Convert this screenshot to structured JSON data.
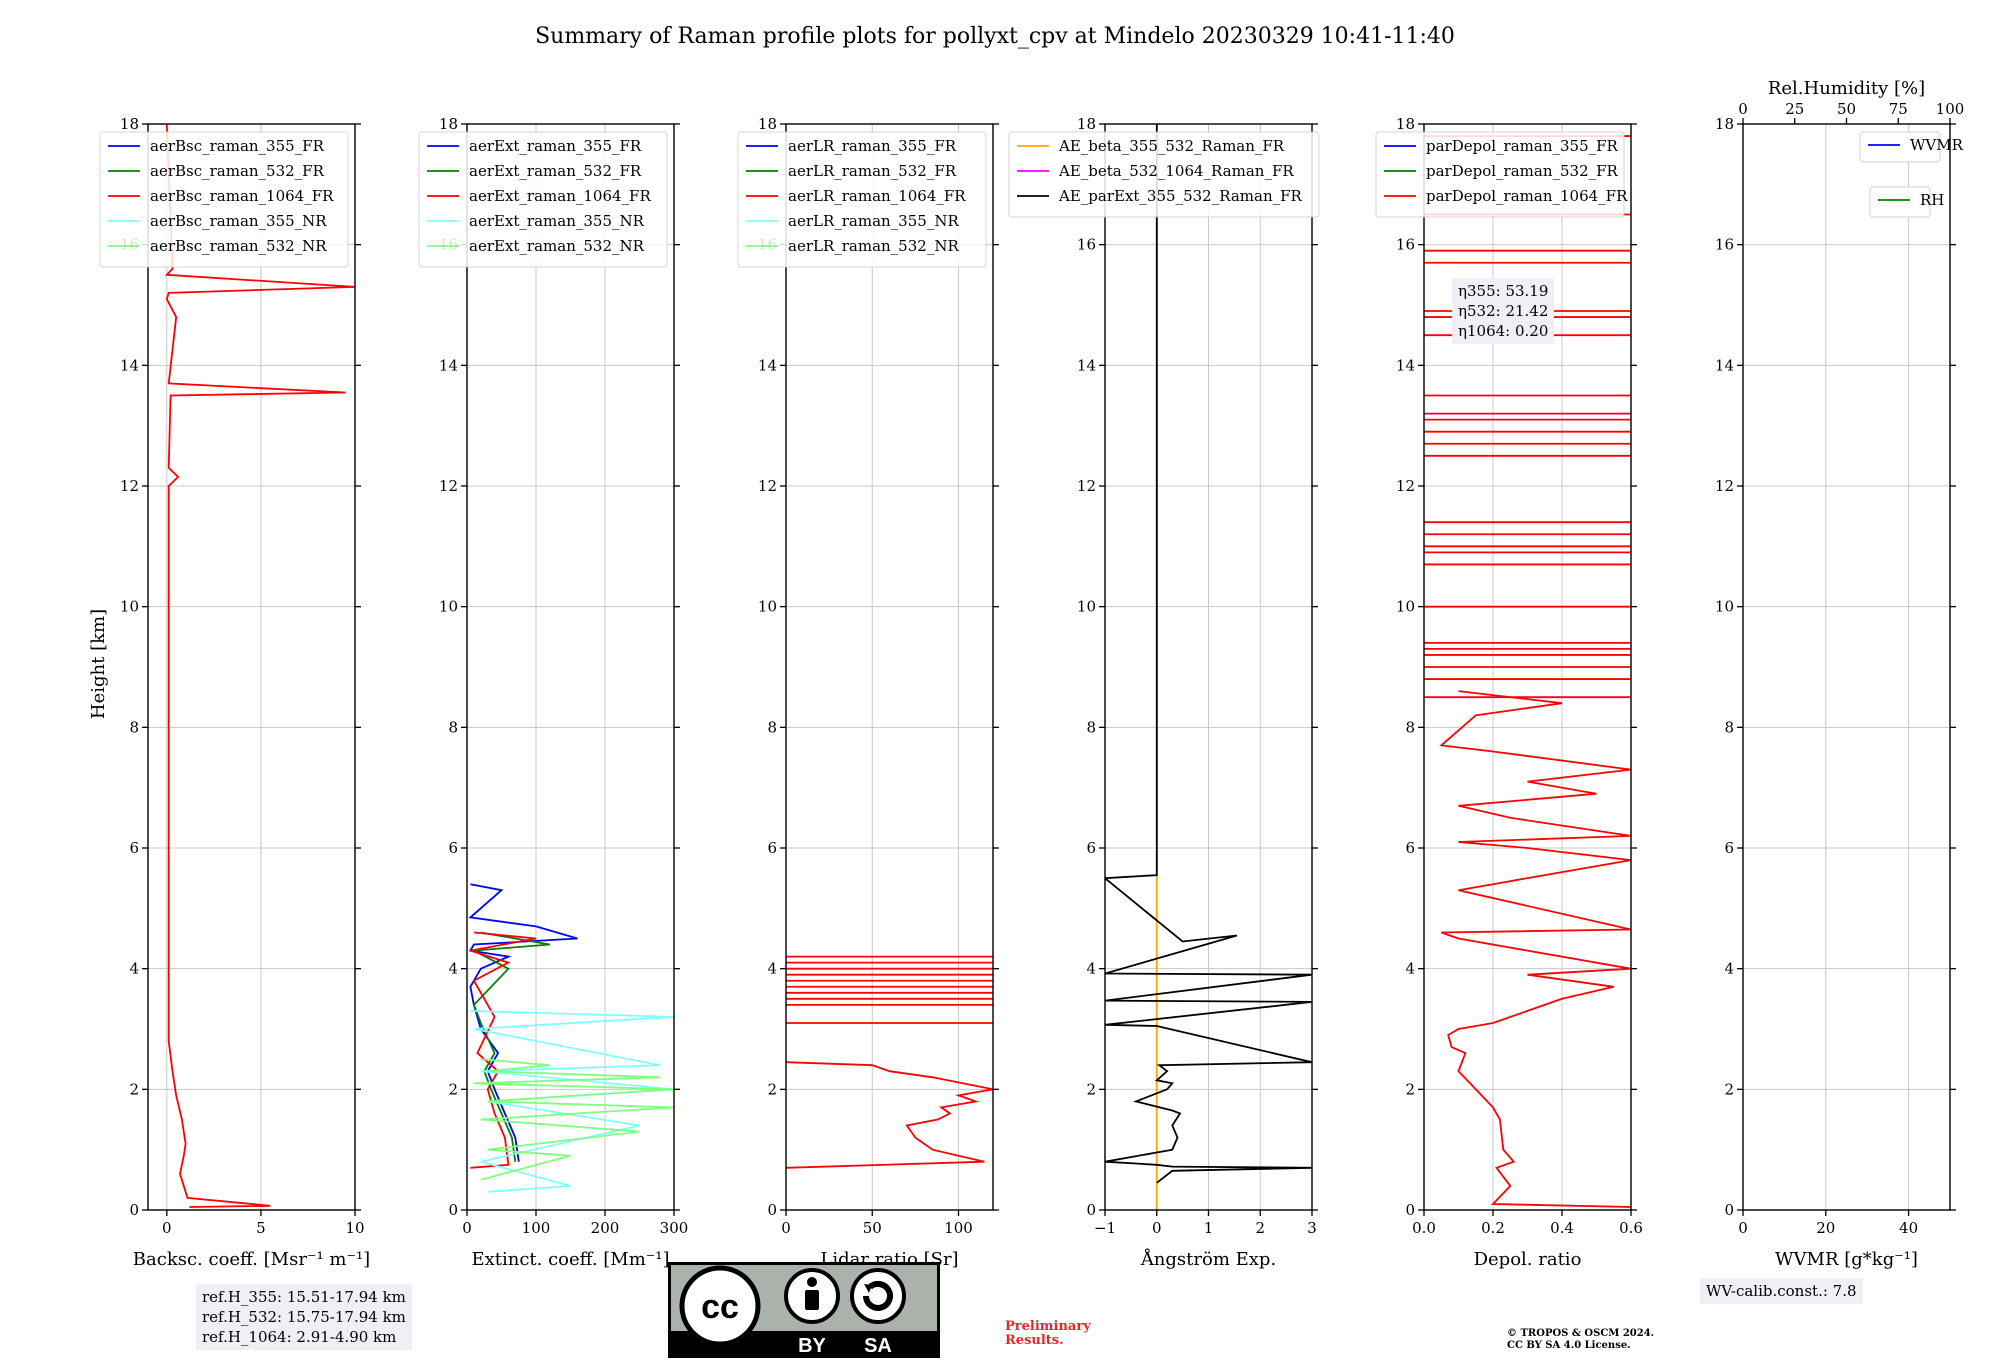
{
  "title": "Summary of Raman profile plots for pollyxt_cpv at Mindelo 20230329 10:41-11:40",
  "ref_heights": [
    "ref.H_355: 15.51-17.94 km",
    "ref.H_532: 15.75-17.94 km",
    "ref.H_1064: 2.91-4.90 km"
  ],
  "wv_calib": "WV-calib.const.: 7.8",
  "eta": [
    "η355: 53.19",
    "η532: 21.42",
    "η1064: 0.20"
  ],
  "preliminary": [
    "Preliminary",
    "Results."
  ],
  "copyright": [
    "© TROPOS & OSCM 2024.",
    "CC BY SA 4.0 License."
  ],
  "license_badge": {
    "left": "BY",
    "right": "SA",
    "icon": "cc-license-icon"
  },
  "colors": {
    "blue": "#0000ff",
    "green": "#008000",
    "red": "#ff0000",
    "cyan": "#80ffff",
    "lightgreen": "#80ff80",
    "orange": "#ffa500",
    "magenta": "#ff00ff",
    "black": "#000000"
  },
  "chart_data": [
    {
      "type": "line",
      "xlabel": "Backsc. coeff. [Msr⁻¹ m⁻¹]",
      "ylabel": "Height [km]",
      "xlim": [
        -1,
        10
      ],
      "ylim": [
        0,
        18
      ],
      "xticks": [
        "0",
        "5",
        "10"
      ],
      "xtick_values": [
        0,
        5,
        10
      ],
      "yticks": [
        "0",
        "2",
        "4",
        "6",
        "8",
        "10",
        "12",
        "14",
        "16",
        "18"
      ],
      "legend": [
        "aerBsc_raman_355_FR",
        "aerBsc_raman_532_FR",
        "aerBsc_raman_1064_FR",
        "aerBsc_raman_355_NR",
        "aerBsc_raman_532_NR"
      ],
      "legend_position": "top-left",
      "series": [
        {
          "name": "aerBsc_raman_1064_FR",
          "color": "red",
          "x": [
            1.2,
            5.5,
            1.1,
            0.7,
            0.9,
            1.0,
            0.8,
            0.5,
            0.3,
            0.1,
            0.1,
            0.1,
            0.6,
            0.1,
            0.2,
            9.5,
            0.1,
            0.5,
            0.0,
            0.1,
            10.0,
            0.0,
            0.3,
            0.0
          ],
          "y": [
            0.05,
            0.07,
            0.2,
            0.6,
            0.9,
            1.1,
            1.5,
            1.9,
            2.3,
            2.8,
            6.0,
            12.0,
            12.15,
            12.3,
            13.5,
            13.55,
            13.7,
            14.8,
            15.1,
            15.2,
            15.3,
            15.5,
            15.6,
            18.0
          ]
        }
      ]
    },
    {
      "type": "line",
      "xlabel": "Extinct. coeff. [Mm⁻¹]",
      "xlim": [
        0,
        300
      ],
      "ylim": [
        0,
        18
      ],
      "xticks": [
        "0",
        "100",
        "200",
        "300"
      ],
      "xtick_values": [
        0,
        100,
        200,
        300
      ],
      "yticks": [
        "0",
        "2",
        "4",
        "6",
        "8",
        "10",
        "12",
        "14",
        "16",
        "18"
      ],
      "legend": [
        "aerExt_raman_355_FR",
        "aerExt_raman_532_FR",
        "aerExt_raman_1064_FR",
        "aerExt_raman_355_NR",
        "aerExt_raman_532_NR"
      ],
      "legend_position": "top-left",
      "series": [
        {
          "name": "aerExt_raman_355_FR",
          "color": "blue",
          "x": [
            75,
            70,
            55,
            40,
            30,
            45,
            20,
            10,
            5,
            20,
            60,
            5,
            10,
            160,
            100,
            5,
            50,
            5
          ],
          "y": [
            0.8,
            1.2,
            1.6,
            2.0,
            2.3,
            2.6,
            3.0,
            3.4,
            3.7,
            4.0,
            4.2,
            4.3,
            4.4,
            4.5,
            4.7,
            4.85,
            5.3,
            5.4
          ]
        },
        {
          "name": "aerExt_raman_532_FR",
          "color": "green",
          "x": [
            70,
            65,
            50,
            35,
            25,
            40,
            20,
            10,
            60,
            10,
            120,
            20
          ],
          "y": [
            0.8,
            1.2,
            1.6,
            2.0,
            2.3,
            2.6,
            3.1,
            3.4,
            4.0,
            4.3,
            4.4,
            4.6
          ]
        },
        {
          "name": "aerExt_raman_1064_FR",
          "color": "red",
          "x": [
            5,
            60,
            55,
            40,
            30,
            45,
            15,
            40,
            10,
            60,
            5,
            100,
            10
          ],
          "y": [
            0.7,
            0.75,
            1.2,
            1.6,
            2.0,
            2.3,
            2.6,
            3.2,
            3.8,
            4.1,
            4.3,
            4.5,
            4.6
          ]
        },
        {
          "name": "aerExt_raman_355_NR",
          "color": "cyan",
          "x": [
            30,
            150,
            20,
            250,
            30,
            300,
            20,
            280,
            10,
            300,
            5
          ],
          "y": [
            0.3,
            0.4,
            0.8,
            1.4,
            1.8,
            2.0,
            2.3,
            2.4,
            3.0,
            3.2,
            3.3
          ]
        },
        {
          "name": "aerExt_raman_532_NR",
          "color": "lightgreen",
          "x": [
            20,
            150,
            30,
            250,
            20,
            300,
            30,
            300,
            10,
            280,
            30,
            120,
            20
          ],
          "y": [
            0.5,
            0.9,
            1.0,
            1.3,
            1.5,
            1.7,
            1.8,
            2.0,
            2.1,
            2.2,
            2.3,
            2.4,
            2.5
          ]
        }
      ]
    },
    {
      "type": "line",
      "xlabel": "Lidar ratio [Sr]",
      "xlim": [
        0,
        120
      ],
      "ylim": [
        0,
        18
      ],
      "xticks": [
        "0",
        "50",
        "100"
      ],
      "xtick_values": [
        0,
        50,
        100
      ],
      "yticks": [
        "0",
        "2",
        "4",
        "6",
        "8",
        "10",
        "12",
        "14",
        "16",
        "18"
      ],
      "legend": [
        "aerLR_raman_355_FR",
        "aerLR_raman_532_FR",
        "aerLR_raman_1064_FR",
        "aerLR_raman_355_NR",
        "aerLR_raman_532_NR"
      ],
      "legend_position": "top-left",
      "series": [
        {
          "name": "aerLR_raman_1064_FR",
          "color": "red",
          "x": [
            0,
            115,
            100,
            85,
            75,
            70,
            88,
            95,
            90,
            110,
            100,
            120,
            85,
            60,
            50,
            0
          ],
          "y": [
            0.7,
            0.8,
            0.9,
            1.0,
            1.2,
            1.4,
            1.5,
            1.6,
            1.7,
            1.8,
            1.9,
            2.0,
            2.2,
            2.3,
            2.4,
            2.45
          ],
          "hlines_y": [
            3.1,
            3.4,
            3.5,
            3.6,
            3.7,
            3.8,
            3.9,
            4.0,
            4.1,
            4.2
          ]
        }
      ]
    },
    {
      "type": "line",
      "xlabel": "Ångström Exp.",
      "xlim": [
        -1,
        3
      ],
      "ylim": [
        0,
        18
      ],
      "xticks": [
        "−1",
        "0",
        "1",
        "2",
        "3"
      ],
      "xtick_values": [
        -1,
        0,
        1,
        2,
        3
      ],
      "yticks": [
        "0",
        "2",
        "4",
        "6",
        "8",
        "10",
        "12",
        "14",
        "16",
        "18"
      ],
      "legend": [
        "AE_beta_355_532_Raman_FR",
        "AE_beta_532_1064_Raman_FR",
        "AE_parExt_355_532_Raman_FR"
      ],
      "legend_position": "top-left",
      "series": [
        {
          "name": "AE_beta_355_532_Raman_FR",
          "color": "orange",
          "x": [
            0,
            0
          ],
          "y": [
            0,
            18
          ]
        },
        {
          "name": "AE_parExt_355_532_Raman_FR",
          "color": "black",
          "x": [
            0.0,
            0.3,
            3.0,
            0.3,
            0.0,
            -1.0,
            0.3,
            0.4,
            0.3,
            0.45,
            0.3,
            -0.4,
            0.2,
            0.3,
            0.0,
            0.2,
            0.05,
            3.0,
            0.0,
            -1.0,
            3.0,
            -1.0,
            3.0,
            -1.0,
            1.55,
            0.5,
            -1.0,
            0.0,
            0.0
          ],
          "y": [
            0.45,
            0.65,
            0.7,
            0.72,
            0.75,
            0.8,
            1.0,
            1.2,
            1.4,
            1.6,
            1.65,
            1.8,
            2.0,
            2.1,
            2.15,
            2.3,
            2.4,
            2.45,
            3.05,
            3.07,
            3.45,
            3.47,
            3.9,
            3.92,
            4.55,
            4.45,
            5.5,
            5.55,
            18
          ]
        }
      ]
    },
    {
      "type": "line",
      "xlabel": "Depol. ratio",
      "xlim": [
        0.0,
        0.6
      ],
      "ylim": [
        0,
        18
      ],
      "xticks": [
        "0.0",
        "0.2",
        "0.4",
        "0.6"
      ],
      "xtick_values": [
        0.0,
        0.2,
        0.4,
        0.6
      ],
      "yticks": [
        "0",
        "2",
        "4",
        "6",
        "8",
        "10",
        "12",
        "14",
        "16",
        "18"
      ],
      "legend": [
        "parDepol_raman_355_FR",
        "parDepol_raman_532_FR",
        "parDepol_raman_1064_FR"
      ],
      "legend_position": "top-left",
      "series": [
        {
          "name": "parDepol_raman_1064_FR",
          "color": "red",
          "x": [
            0.6,
            0.2,
            0.25,
            0.21,
            0.26,
            0.23,
            0.22,
            0.2,
            0.15,
            0.1,
            0.12,
            0.08,
            0.07,
            0.1,
            0.2,
            0.3,
            0.4,
            0.55,
            0.3,
            0.6,
            0.3,
            0.1,
            0.05,
            0.6,
            0.1,
            0.2,
            0.4,
            0.6,
            0.3,
            0.1,
            0.6,
            0.25,
            0.1,
            0.5,
            0.3,
            0.6,
            0.2,
            0.05,
            0.15,
            0.4,
            0.1
          ],
          "y": [
            0.05,
            0.1,
            0.4,
            0.7,
            0.8,
            1.0,
            1.5,
            1.7,
            2.0,
            2.3,
            2.6,
            2.7,
            2.9,
            3.0,
            3.1,
            3.3,
            3.5,
            3.7,
            3.9,
            4.0,
            4.3,
            4.5,
            4.6,
            4.65,
            5.3,
            5.4,
            5.6,
            5.8,
            6.0,
            6.1,
            6.2,
            6.5,
            6.7,
            6.9,
            7.1,
            7.3,
            7.6,
            7.7,
            8.2,
            8.4,
            8.6
          ],
          "hlines_y": [
            8.5,
            8.8,
            9.0,
            9.2,
            9.3,
            9.4,
            10.0,
            10.7,
            10.9,
            11.0,
            11.2,
            11.4,
            12.5,
            12.7,
            12.9,
            13.1,
            13.2,
            13.5,
            14.5,
            14.8,
            14.9,
            15.7,
            15.9,
            16.5,
            17.8
          ]
        }
      ]
    },
    {
      "type": "line",
      "xlabel": "WVMR [g*kg⁻¹]",
      "secondary_xlabel": "Rel.Humidity [%]",
      "xlim": [
        0,
        50
      ],
      "secondary_xlim": [
        0,
        100
      ],
      "ylim": [
        0,
        18
      ],
      "xticks": [
        "0",
        "20",
        "40"
      ],
      "xtick_values": [
        0,
        20,
        40
      ],
      "secondary_xticks": [
        "0",
        "25",
        "50",
        "75",
        "100"
      ],
      "secondary_xtick_values": [
        0,
        25,
        50,
        75,
        100
      ],
      "yticks": [
        "0",
        "2",
        "4",
        "6",
        "8",
        "10",
        "12",
        "14",
        "16",
        "18"
      ],
      "legend": [
        "WVMR",
        "RH"
      ],
      "legend_position": "top-right",
      "series": []
    }
  ]
}
